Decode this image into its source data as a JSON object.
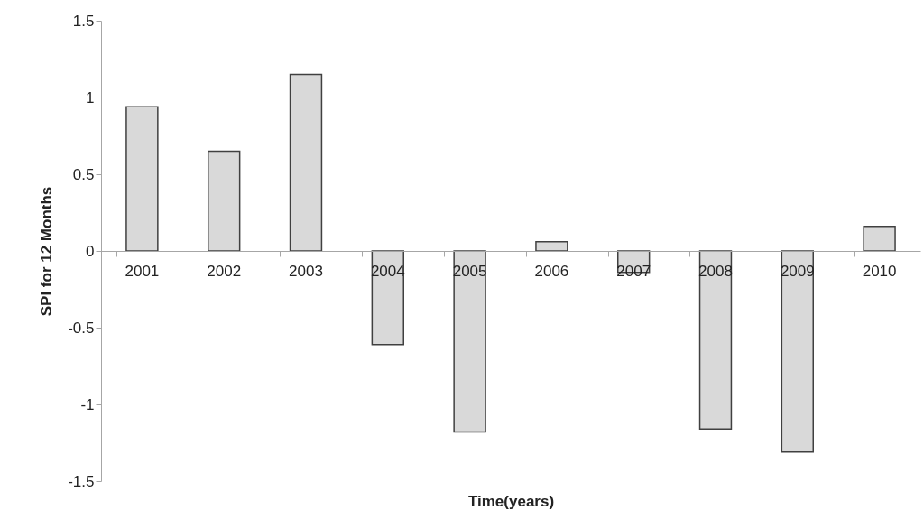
{
  "chart_data": {
    "type": "bar",
    "xlabel": "Time(years)",
    "ylabel": "SPI for 12 Months",
    "categories": [
      "2001",
      "2002",
      "2003",
      "2004",
      "2005",
      "2006",
      "2007",
      "2008",
      "2009",
      "2010"
    ],
    "values": [
      0.94,
      0.65,
      1.15,
      -0.61,
      -1.18,
      0.06,
      -0.14,
      -1.16,
      -1.31,
      0.16
    ],
    "color": "#d9d9d9",
    "ylim": [
      -1.5,
      1.5
    ],
    "yticks": [
      -1.5,
      -1,
      -0.5,
      0,
      0.5,
      1,
      1.5
    ],
    "grid": false
  }
}
